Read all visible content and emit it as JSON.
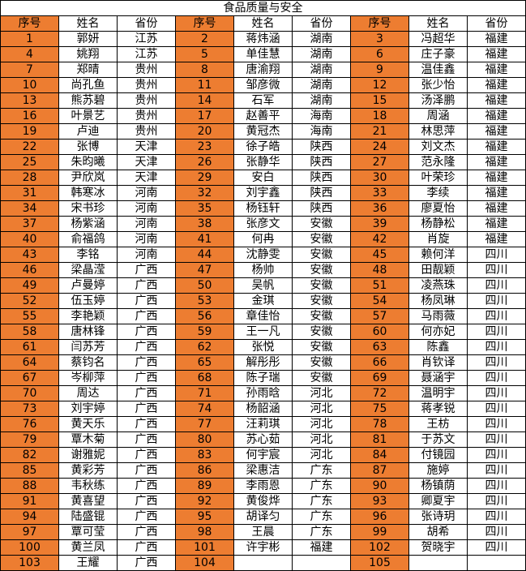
{
  "title": "食品质量与安全",
  "headers": [
    "序号",
    "姓名",
    "省份"
  ],
  "colors": {
    "seq_fill": "#ED7D31",
    "border": "#000000"
  },
  "rows": [
    [
      [
        "1",
        "郭妍",
        "江苏"
      ],
      [
        "2",
        "蒋炜涵",
        "湖南"
      ],
      [
        "3",
        "冯超华",
        "福建"
      ]
    ],
    [
      [
        "4",
        "姚翔",
        "江苏"
      ],
      [
        "5",
        "单佳慧",
        "湖南"
      ],
      [
        "6",
        "庄子豪",
        "福建"
      ]
    ],
    [
      [
        "7",
        "郑晴",
        "贵州"
      ],
      [
        "8",
        "唐渝翔",
        "湖南"
      ],
      [
        "9",
        "温佳鑫",
        "福建"
      ]
    ],
    [
      [
        "10",
        "尚孔鱼",
        "贵州"
      ],
      [
        "11",
        "邹彦微",
        "湖南"
      ],
      [
        "12",
        "张少怡",
        "福建"
      ]
    ],
    [
      [
        "13",
        "熊苏碧",
        "贵州"
      ],
      [
        "14",
        "石军",
        "湖南"
      ],
      [
        "15",
        "汤泽鹏",
        "福建"
      ]
    ],
    [
      [
        "16",
        "叶景艺",
        "贵州"
      ],
      [
        "17",
        "赵善平",
        "海南"
      ],
      [
        "18",
        "周涵",
        "福建"
      ]
    ],
    [
      [
        "19",
        "卢迪",
        "贵州"
      ],
      [
        "20",
        "黄冠杰",
        "海南"
      ],
      [
        "21",
        "林思萍",
        "福建"
      ]
    ],
    [
      [
        "22",
        "张博",
        "天津"
      ],
      [
        "23",
        "徐子皓",
        "陕西"
      ],
      [
        "24",
        "刘文杰",
        "福建"
      ]
    ],
    [
      [
        "25",
        "朱昀曦",
        "天津"
      ],
      [
        "26",
        "张静华",
        "陕西"
      ],
      [
        "27",
        "范永隆",
        "福建"
      ]
    ],
    [
      [
        "28",
        "尹欣岚",
        "天津"
      ],
      [
        "29",
        "安白",
        "陕西"
      ],
      [
        "30",
        "叶荣珍",
        "福建"
      ]
    ],
    [
      [
        "31",
        "韩寒冰",
        "河南"
      ],
      [
        "32",
        "刘宇鑫",
        "陕西"
      ],
      [
        "33",
        "李续",
        "福建"
      ]
    ],
    [
      [
        "34",
        "宋书珍",
        "河南"
      ],
      [
        "35",
        "杨钰轩",
        "陕西"
      ],
      [
        "36",
        "廖夏怡",
        "福建"
      ]
    ],
    [
      [
        "37",
        "杨紫涵",
        "河南"
      ],
      [
        "38",
        "张彦文",
        "安徽"
      ],
      [
        "39",
        "杨静松",
        "福建"
      ]
    ],
    [
      [
        "40",
        "俞福鸽",
        "河南"
      ],
      [
        "41",
        "何冉",
        "安徽"
      ],
      [
        "42",
        "肖旋",
        "福建"
      ]
    ],
    [
      [
        "43",
        "李铭",
        "河南"
      ],
      [
        "44",
        "沈静雯",
        "安徽"
      ],
      [
        "45",
        "赖何洋",
        "四川"
      ]
    ],
    [
      [
        "46",
        "梁晶滢",
        "广西"
      ],
      [
        "47",
        "杨帅",
        "安徽"
      ],
      [
        "48",
        "田靓颖",
        "四川"
      ]
    ],
    [
      [
        "49",
        "卢曼婷",
        "广西"
      ],
      [
        "50",
        "吴帆",
        "安徽"
      ],
      [
        "51",
        "凌燕珠",
        "四川"
      ]
    ],
    [
      [
        "52",
        "伍玉婷",
        "广西"
      ],
      [
        "53",
        "金琪",
        "安徽"
      ],
      [
        "54",
        "杨凤琳",
        "四川"
      ]
    ],
    [
      [
        "55",
        "李艳颖",
        "广西"
      ],
      [
        "56",
        "章佳怡",
        "安徽"
      ],
      [
        "57",
        "马雨薇",
        "四川"
      ]
    ],
    [
      [
        "58",
        "唐林锋",
        "广西"
      ],
      [
        "59",
        "王一凡",
        "安徽"
      ],
      [
        "60",
        "何亦妃",
        "四川"
      ]
    ],
    [
      [
        "61",
        "闫苏芳",
        "广西"
      ],
      [
        "62",
        "张悦",
        "安徽"
      ],
      [
        "63",
        "陈鑫",
        "四川"
      ]
    ],
    [
      [
        "64",
        "蔡钧名",
        "广西"
      ],
      [
        "65",
        "解彤彤",
        "安徽"
      ],
      [
        "66",
        "肖钦译",
        "四川"
      ]
    ],
    [
      [
        "67",
        "岑柳萍",
        "广西"
      ],
      [
        "68",
        "陈子瑞",
        "安徽"
      ],
      [
        "69",
        "聂涵宇",
        "四川"
      ]
    ],
    [
      [
        "70",
        "周达",
        "广西"
      ],
      [
        "71",
        "孙雨晗",
        "河北"
      ],
      [
        "72",
        "温明宇",
        "四川"
      ]
    ],
    [
      [
        "73",
        "刘宇婷",
        "广西"
      ],
      [
        "74",
        "杨韶涵",
        "河北"
      ],
      [
        "75",
        "蒋孝锐",
        "四川"
      ]
    ],
    [
      [
        "76",
        "黄天乐",
        "广西"
      ],
      [
        "77",
        "汪莉琪",
        "河北"
      ],
      [
        "78",
        "王枋",
        "四川"
      ]
    ],
    [
      [
        "79",
        "覃木菊",
        "广西"
      ],
      [
        "80",
        "苏心茹",
        "河北"
      ],
      [
        "81",
        "于苏文",
        "四川"
      ]
    ],
    [
      [
        "82",
        "谢雅妮",
        "广西"
      ],
      [
        "83",
        "何宇宸",
        "河北"
      ],
      [
        "84",
        "付镜园",
        "四川"
      ]
    ],
    [
      [
        "85",
        "黄彩芳",
        "广西"
      ],
      [
        "86",
        "梁惠洁",
        "广东"
      ],
      [
        "87",
        "施婷",
        "四川"
      ]
    ],
    [
      [
        "88",
        "韦秋练",
        "广西"
      ],
      [
        "89",
        "李雨恩",
        "广东"
      ],
      [
        "90",
        "杨镇荫",
        "四川"
      ]
    ],
    [
      [
        "91",
        "黄喜望",
        "广西"
      ],
      [
        "92",
        "黄俊烨",
        "广东"
      ],
      [
        "93",
        "卿夏宇",
        "四川"
      ]
    ],
    [
      [
        "94",
        "陆盛锟",
        "广西"
      ],
      [
        "95",
        "胡译匀",
        "广东"
      ],
      [
        "96",
        "张诗玥",
        "四川"
      ]
    ],
    [
      [
        "97",
        "覃可莹",
        "广西"
      ],
      [
        "98",
        "王晨",
        "广东"
      ],
      [
        "99",
        "胡希",
        "四川"
      ]
    ],
    [
      [
        "100",
        "黄兰凤",
        "广西"
      ],
      [
        "101",
        "许宇彬",
        "福建"
      ],
      [
        "102",
        "贺晓宇",
        "四川"
      ]
    ],
    [
      [
        "103",
        "王耀",
        "广西"
      ],
      [
        "104",
        "",
        ""
      ],
      [
        "105",
        "",
        ""
      ]
    ]
  ]
}
